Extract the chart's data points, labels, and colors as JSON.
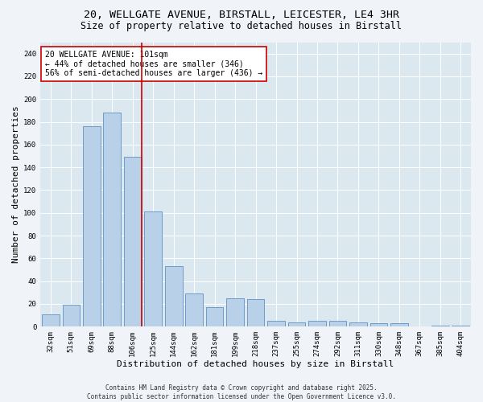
{
  "title_line1": "20, WELLGATE AVENUE, BIRSTALL, LEICESTER, LE4 3HR",
  "title_line2": "Size of property relative to detached houses in Birstall",
  "xlabel": "Distribution of detached houses by size in Birstall",
  "ylabel": "Number of detached properties",
  "categories": [
    "32sqm",
    "51sqm",
    "69sqm",
    "88sqm",
    "106sqm",
    "125sqm",
    "144sqm",
    "162sqm",
    "181sqm",
    "199sqm",
    "218sqm",
    "237sqm",
    "255sqm",
    "274sqm",
    "292sqm",
    "311sqm",
    "330sqm",
    "348sqm",
    "367sqm",
    "385sqm",
    "404sqm"
  ],
  "values": [
    11,
    19,
    176,
    188,
    149,
    101,
    53,
    29,
    17,
    25,
    24,
    5,
    4,
    5,
    5,
    4,
    3,
    3,
    0,
    1,
    1
  ],
  "bar_color": "#b8d0e8",
  "bar_edge_color": "#6090c0",
  "vline_color": "#cc0000",
  "vline_index": 4,
  "annotation_text": "20 WELLGATE AVENUE: 101sqm\n← 44% of detached houses are smaller (346)\n56% of semi-detached houses are larger (436) →",
  "box_color": "#ffffff",
  "box_edge_color": "#cc0000",
  "ylim": [
    0,
    250
  ],
  "yticks": [
    0,
    20,
    40,
    60,
    80,
    100,
    120,
    140,
    160,
    180,
    200,
    220,
    240
  ],
  "bg_color": "#dce8f0",
  "fig_bg_color": "#f0f4f8",
  "footer": "Contains HM Land Registry data © Crown copyright and database right 2025.\nContains public sector information licensed under the Open Government Licence v3.0.",
  "title_fontsize": 9.5,
  "subtitle_fontsize": 8.5,
  "axis_label_fontsize": 8,
  "tick_fontsize": 6.5,
  "annotation_fontsize": 7,
  "footer_fontsize": 5.5
}
